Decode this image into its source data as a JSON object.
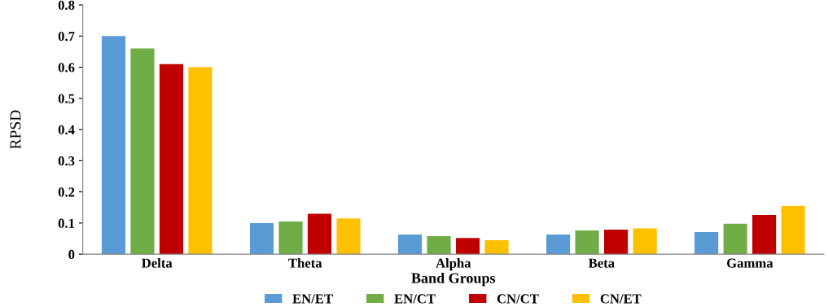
{
  "chart_data": {
    "type": "bar",
    "xlabel": "Band Groups",
    "ylabel": "RPSD",
    "categories": [
      "Delta",
      "Theta",
      "Alpha",
      "Beta",
      "Gamma"
    ],
    "series": [
      {
        "name": "EN/ET",
        "color": "#5b9bd5",
        "values": [
          0.7,
          0.1,
          0.063,
          0.063,
          0.071
        ]
      },
      {
        "name": "EN/CT",
        "color": "#70ad47",
        "values": [
          0.66,
          0.105,
          0.058,
          0.076,
          0.098
        ]
      },
      {
        "name": "CN/CT",
        "color": "#c00000",
        "values": [
          0.61,
          0.13,
          0.052,
          0.079,
          0.126
        ]
      },
      {
        "name": "CN/ET",
        "color": "#ffc000",
        "values": [
          0.6,
          0.115,
          0.045,
          0.083,
          0.155
        ]
      }
    ],
    "ylim": [
      0,
      0.8
    ],
    "yticks": [
      0,
      0.1,
      0.2,
      0.3,
      0.4,
      0.5,
      0.6,
      0.7,
      0.8
    ],
    "grid": false,
    "legend": "bottom"
  }
}
